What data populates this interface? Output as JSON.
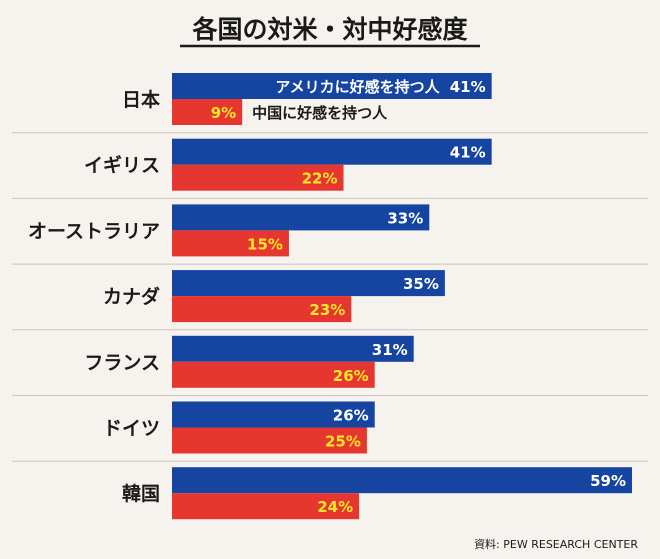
{
  "chart_data": {
    "type": "bar",
    "orientation": "horizontal",
    "title": "各国の対米・対中好感度",
    "categories": [
      "日本",
      "イギリス",
      "オーストラリア",
      "カナダ",
      "フランス",
      "ドイツ",
      "韓国"
    ],
    "series": [
      {
        "name": "アメリカに好感を持つ人",
        "color": "#1545a0",
        "values": [
          41,
          41,
          33,
          35,
          31,
          26,
          59
        ]
      },
      {
        "name": "中国に好感を持つ人",
        "color": "#e5372f",
        "values": [
          9,
          22,
          15,
          23,
          26,
          25,
          24
        ]
      }
    ],
    "value_suffix": "%",
    "xlim": [
      0,
      59
    ],
    "source": "資料: PEW RESEARCH CENTER"
  },
  "colors": {
    "background": "#f6f2ee",
    "label_yellow": "#ffe627",
    "text_dark": "#1a1a1a",
    "divider": "#c9c4bf"
  }
}
